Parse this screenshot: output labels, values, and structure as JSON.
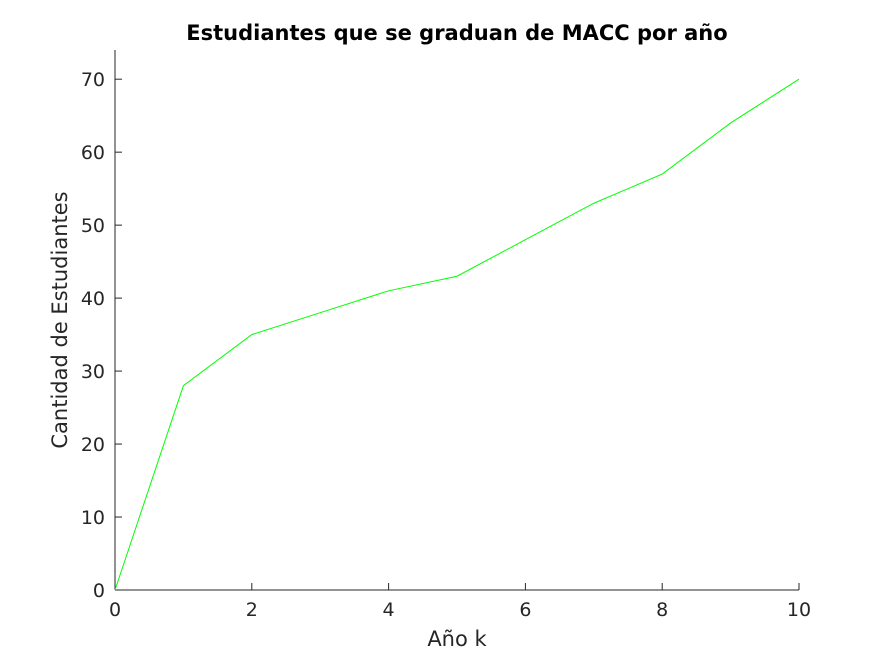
{
  "chart_data": {
    "type": "line",
    "title": "Estudiantes que se graduan de MACC por año",
    "xlabel": "Año k",
    "ylabel": "Cantidad de Estudiantes",
    "xlim": [
      0,
      10
    ],
    "ylim": [
      0,
      74
    ],
    "xticks": [
      0,
      2,
      4,
      6,
      8,
      10
    ],
    "yticks": [
      0,
      10,
      20,
      30,
      40,
      50,
      60,
      70
    ],
    "grid": false,
    "series": [
      {
        "color": "#00ff00",
        "x": [
          0,
          1,
          2,
          3,
          4,
          5,
          6,
          7,
          8,
          9,
          10
        ],
        "y": [
          0,
          28,
          35,
          38,
          41,
          43,
          48,
          53,
          57,
          64,
          70
        ]
      }
    ]
  }
}
